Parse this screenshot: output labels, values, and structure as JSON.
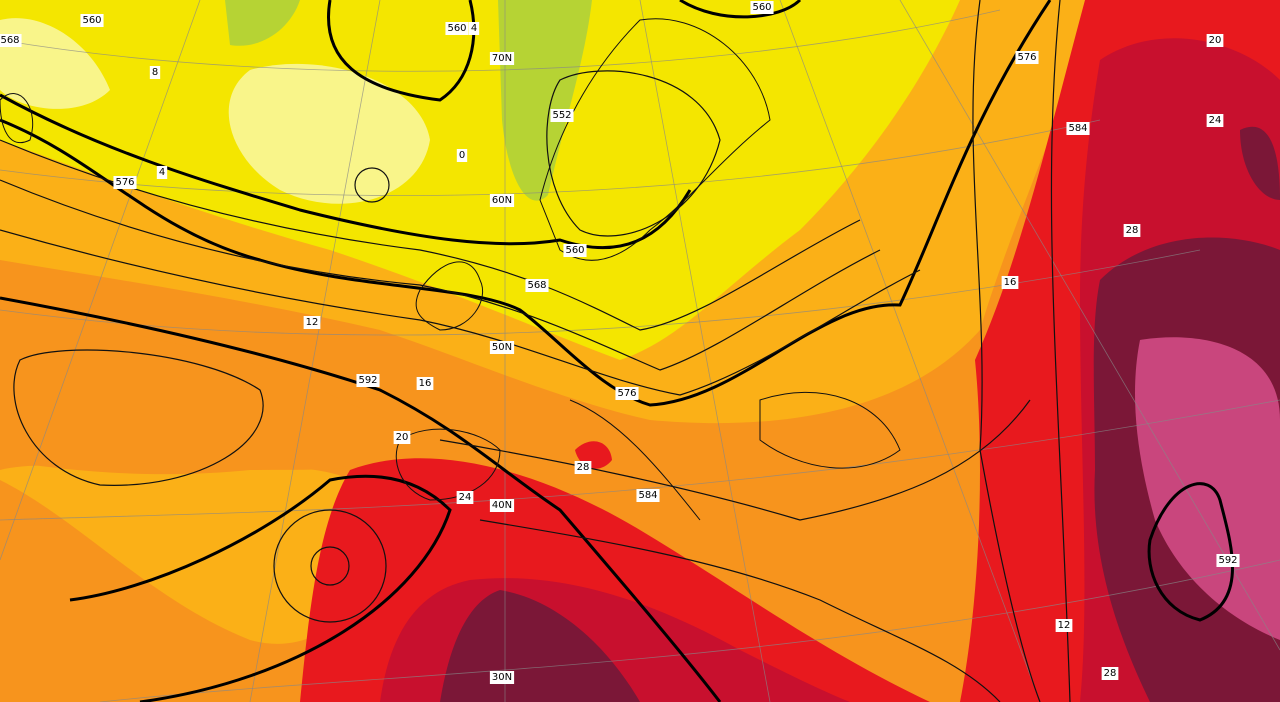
{
  "map": {
    "contour_labels": [
      560,
      560,
      560,
      552,
      568,
      568,
      576,
      576,
      576,
      584,
      584,
      592,
      592,
      560
    ],
    "latitude_labels": [
      "70N",
      "60N",
      "50N",
      "40N",
      "30N"
    ],
    "temperature_labels": [
      "8",
      "4",
      "0",
      "4",
      "12",
      "16",
      "20",
      "24",
      "28",
      "20",
      "24",
      "28",
      "16",
      "12",
      "28"
    ]
  }
}
